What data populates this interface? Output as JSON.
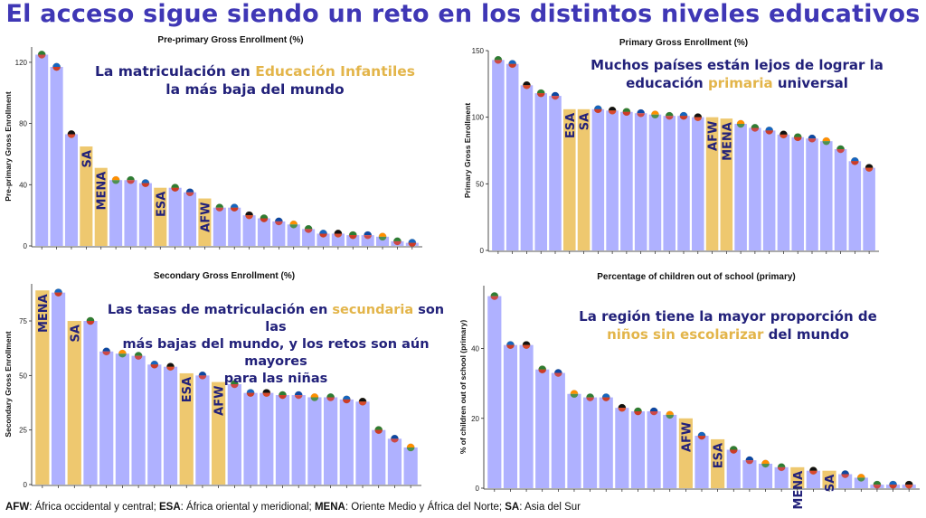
{
  "title": "El acceso sigue siendo un reto en los distintos niveles educativos",
  "colors": {
    "bar": "#afb1ff",
    "highlight": "#eec86f",
    "callout_text": "#22217a",
    "callout_highlight": "#e3b54a",
    "title": "#3f37b5"
  },
  "callouts": {
    "pre_primary": {
      "line1_a": "La matriculación en ",
      "line1_b": "Educación Infantiles",
      "line2": "la más baja del mundo"
    },
    "primary": {
      "line1": "Muchos países están lejos de lograr la",
      "line2_a": "educación ",
      "line2_b": "primaria",
      "line2_c": " universal"
    },
    "secondary": {
      "line1_a": "Las tasas de matriculación en ",
      "line1_b": "secundaria",
      "line1_c": " son las",
      "line2": "más bajas del mundo, y los retos son aún mayores",
      "line3": "para las niñas"
    },
    "out_of_school": {
      "line1": "La región tiene la mayor proporción de",
      "line2_a": "niños sin escolarizar",
      "line2_b": " del mundo"
    }
  },
  "footer": {
    "afw_abbr": "AFW",
    "afw_text": ": África occidental y central; ",
    "esa_abbr": "ESA",
    "esa_text": ": África oriental y meridional; ",
    "mena_abbr": "MENA",
    "mena_text": ": Oriente Medio y África del Norte; ",
    "sa_abbr": "SA",
    "sa_text": ": Asia del Sur"
  },
  "chart_data": [
    {
      "type": "bar",
      "title": "Pre-primary Gross Enrollment (%)",
      "xlabel": "",
      "ylabel": "Pre-primary Gross Enrollment",
      "ylim": [
        0,
        130
      ],
      "yticks": [
        0,
        40,
        80,
        120
      ],
      "values": [
        125,
        117,
        73,
        65,
        51,
        43,
        43,
        41,
        38,
        38,
        35,
        31,
        25,
        25,
        20,
        18,
        16,
        14,
        11,
        8,
        8,
        7,
        7,
        6,
        3,
        2
      ],
      "region_labels": {
        "3": "SA",
        "4": "MENA",
        "8": "ESA",
        "11": "AFW"
      }
    },
    {
      "type": "bar",
      "title": "Primary Gross Enrollment (%)",
      "xlabel": "",
      "ylabel": "Primary Gross Enrollment",
      "ylim": [
        0,
        150
      ],
      "yticks": [
        0,
        50,
        100,
        150
      ],
      "values": [
        143,
        140,
        124,
        118,
        116,
        106,
        106,
        106,
        105,
        104,
        103,
        102,
        101,
        101,
        100,
        100,
        99,
        95,
        92,
        90,
        87,
        85,
        84,
        82,
        76,
        67,
        62
      ],
      "region_labels": {
        "5": "ESA",
        "6": "SA",
        "15": "AFW",
        "16": "MENA"
      }
    },
    {
      "type": "bar",
      "title": "Secondary Gross Enrollment (%)",
      "xlabel": "",
      "ylabel": "Secondary Gross Enrollment",
      "ylim": [
        0,
        92
      ],
      "yticks": [
        0,
        25,
        50,
        75
      ],
      "values": [
        89,
        88,
        75,
        75,
        61,
        60,
        59,
        55,
        54,
        51,
        50,
        47,
        46,
        42,
        42,
        41,
        41,
        40,
        40,
        39,
        38,
        25,
        21,
        17
      ],
      "region_labels": {
        "0": "MENA",
        "2": "SA",
        "9": "ESA",
        "11": "AFW"
      }
    },
    {
      "type": "bar",
      "title": "Percentage of children out of school (primary)",
      "xlabel": "",
      "ylabel": "% of children out of school (primary)",
      "ylim": [
        0,
        58
      ],
      "yticks": [
        0,
        20,
        40
      ],
      "values": [
        55,
        41,
        41,
        34,
        33,
        27,
        26,
        26,
        23,
        22,
        22,
        21,
        20,
        15,
        14,
        11,
        8,
        7,
        6,
        6,
        5,
        5,
        4,
        3,
        1,
        1,
        1
      ],
      "region_labels": {
        "12": "AFW",
        "14": "ESA",
        "19": "MENA",
        "21": "SA"
      }
    }
  ]
}
